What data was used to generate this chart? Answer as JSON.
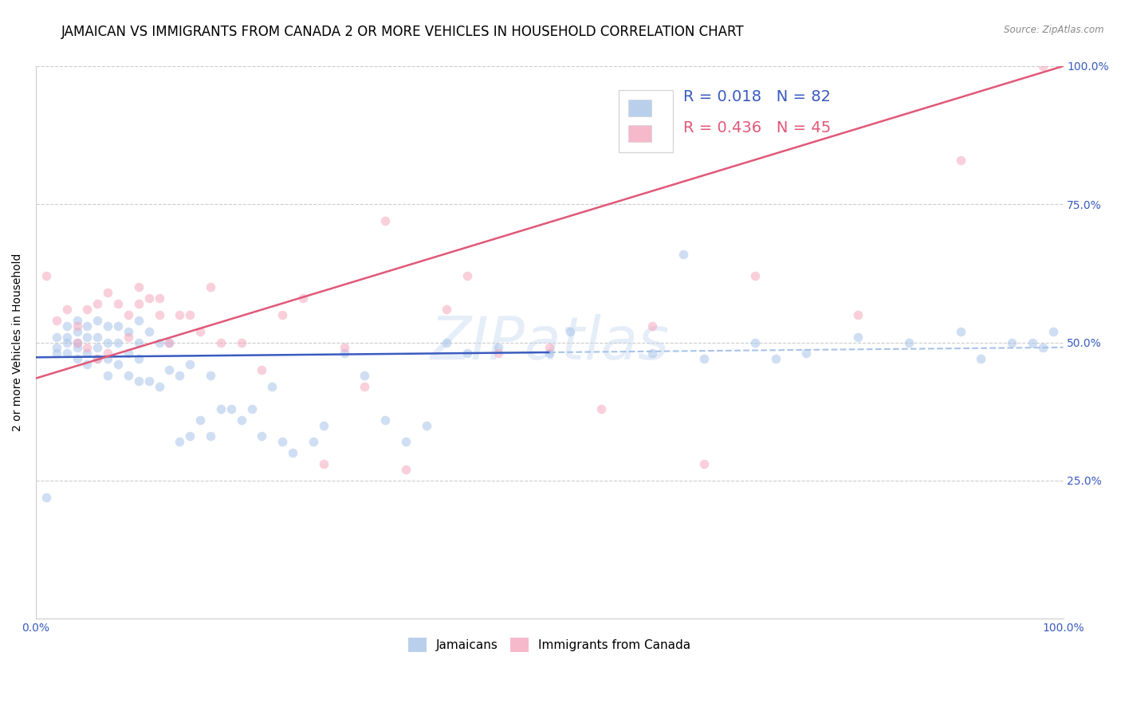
{
  "title": "JAMAICAN VS IMMIGRANTS FROM CANADA 2 OR MORE VEHICLES IN HOUSEHOLD CORRELATION CHART",
  "source": "Source: ZipAtlas.com",
  "ylabel": "2 or more Vehicles in Household",
  "xlim": [
    0,
    1
  ],
  "ylim": [
    0,
    1
  ],
  "xticks": [
    0.0,
    0.25,
    0.5,
    0.75,
    1.0
  ],
  "xticklabels": [
    "0.0%",
    "",
    "",
    "",
    "100.0%"
  ],
  "yticks": [
    0.0,
    0.25,
    0.5,
    0.75,
    1.0
  ],
  "yticklabels": [
    "",
    "25.0%",
    "50.0%",
    "75.0%",
    "100.0%"
  ],
  "legend_r_blue": "0.018",
  "legend_n_blue": "82",
  "legend_r_pink": "0.436",
  "legend_n_pink": "45",
  "blue_color": "#a8c4e8",
  "pink_color": "#f4a8be",
  "blue_line_color": "#3a5bbf",
  "pink_line_color": "#e05878",
  "dashed_line_color": "#a8c4e8",
  "watermark": "ZIPatlas",
  "title_fontsize": 12,
  "label_fontsize": 10,
  "tick_fontsize": 10,
  "blue_scatter_x": [
    0.01,
    0.02,
    0.02,
    0.02,
    0.03,
    0.03,
    0.03,
    0.03,
    0.04,
    0.04,
    0.04,
    0.04,
    0.04,
    0.05,
    0.05,
    0.05,
    0.05,
    0.06,
    0.06,
    0.06,
    0.06,
    0.07,
    0.07,
    0.07,
    0.07,
    0.08,
    0.08,
    0.08,
    0.09,
    0.09,
    0.09,
    0.1,
    0.1,
    0.1,
    0.1,
    0.11,
    0.11,
    0.12,
    0.12,
    0.13,
    0.13,
    0.14,
    0.14,
    0.15,
    0.15,
    0.16,
    0.17,
    0.17,
    0.18,
    0.19,
    0.2,
    0.21,
    0.22,
    0.23,
    0.24,
    0.25,
    0.27,
    0.28,
    0.3,
    0.32,
    0.34,
    0.36,
    0.38,
    0.4,
    0.42,
    0.45,
    0.5,
    0.52,
    0.6,
    0.63,
    0.65,
    0.7,
    0.72,
    0.75,
    0.8,
    0.85,
    0.9,
    0.92,
    0.95,
    0.97,
    0.98,
    0.99
  ],
  "blue_scatter_y": [
    0.22,
    0.48,
    0.49,
    0.51,
    0.48,
    0.5,
    0.51,
    0.53,
    0.47,
    0.49,
    0.5,
    0.52,
    0.54,
    0.46,
    0.48,
    0.51,
    0.53,
    0.47,
    0.49,
    0.51,
    0.54,
    0.44,
    0.47,
    0.5,
    0.53,
    0.46,
    0.5,
    0.53,
    0.44,
    0.48,
    0.52,
    0.43,
    0.47,
    0.5,
    0.54,
    0.43,
    0.52,
    0.42,
    0.5,
    0.45,
    0.5,
    0.32,
    0.44,
    0.33,
    0.46,
    0.36,
    0.33,
    0.44,
    0.38,
    0.38,
    0.36,
    0.38,
    0.33,
    0.42,
    0.32,
    0.3,
    0.32,
    0.35,
    0.48,
    0.44,
    0.36,
    0.32,
    0.35,
    0.5,
    0.48,
    0.49,
    0.48,
    0.52,
    0.48,
    0.66,
    0.47,
    0.5,
    0.47,
    0.48,
    0.51,
    0.5,
    0.52,
    0.47,
    0.5,
    0.5,
    0.49,
    0.52
  ],
  "pink_scatter_x": [
    0.01,
    0.02,
    0.03,
    0.04,
    0.04,
    0.05,
    0.05,
    0.06,
    0.06,
    0.07,
    0.07,
    0.08,
    0.09,
    0.09,
    0.1,
    0.1,
    0.11,
    0.12,
    0.12,
    0.13,
    0.14,
    0.15,
    0.16,
    0.17,
    0.18,
    0.2,
    0.22,
    0.24,
    0.26,
    0.28,
    0.3,
    0.32,
    0.34,
    0.36,
    0.4,
    0.42,
    0.45,
    0.5,
    0.55,
    0.6,
    0.65,
    0.7,
    0.8,
    0.9,
    0.98
  ],
  "pink_scatter_y": [
    0.62,
    0.54,
    0.56,
    0.5,
    0.53,
    0.49,
    0.56,
    0.47,
    0.57,
    0.48,
    0.59,
    0.57,
    0.51,
    0.55,
    0.57,
    0.6,
    0.58,
    0.55,
    0.58,
    0.5,
    0.55,
    0.55,
    0.52,
    0.6,
    0.5,
    0.5,
    0.45,
    0.55,
    0.58,
    0.28,
    0.49,
    0.42,
    0.72,
    0.27,
    0.56,
    0.62,
    0.48,
    0.49,
    0.38,
    0.53,
    0.28,
    0.62,
    0.55,
    0.83,
    1.0
  ],
  "blue_line_x": [
    0.0,
    0.5
  ],
  "blue_line_y": [
    0.473,
    0.482
  ],
  "pink_line_x": [
    0.0,
    1.0
  ],
  "pink_line_y": [
    0.435,
    1.0
  ],
  "dashed_line_x": [
    0.5,
    1.0
  ],
  "dashed_line_y": [
    0.482,
    0.491
  ],
  "background_color": "#ffffff",
  "grid_color": "#cccccc",
  "right_tick_color": "#3a5bbf",
  "marker_size": 70,
  "marker_alpha": 0.55
}
